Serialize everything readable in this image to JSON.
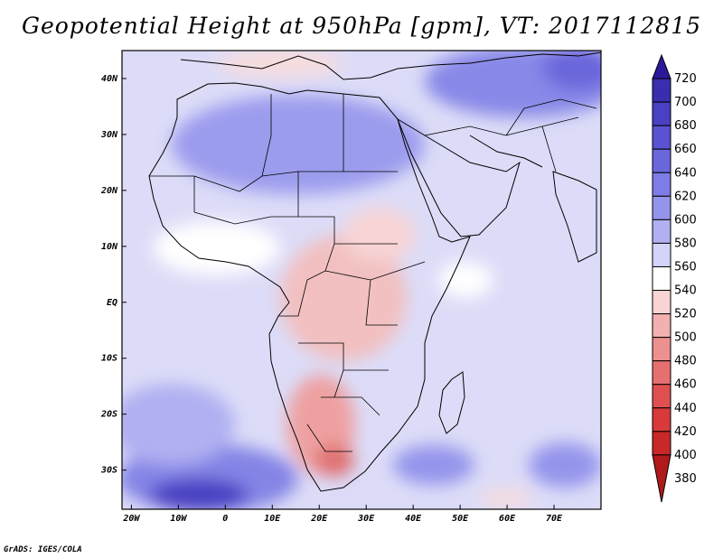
{
  "title": "Geopotential Height at 950hPa [gpm], VT: 2017112815",
  "credit": "GrADS: IGES/COLA",
  "map": {
    "lon_range": [
      -22,
      80
    ],
    "lat_range": [
      -37,
      45
    ],
    "lat_ticks": [
      {
        "value": 40,
        "label": "40N"
      },
      {
        "value": 30,
        "label": "30N"
      },
      {
        "value": 20,
        "label": "20N"
      },
      {
        "value": 10,
        "label": "10N"
      },
      {
        "value": 0,
        "label": "EQ"
      },
      {
        "value": -10,
        "label": "10S"
      },
      {
        "value": -20,
        "label": "20S"
      },
      {
        "value": -30,
        "label": "30S"
      }
    ],
    "lon_ticks": [
      {
        "value": -20,
        "label": "20W"
      },
      {
        "value": -10,
        "label": "10W"
      },
      {
        "value": 0,
        "label": "0"
      },
      {
        "value": 10,
        "label": "10E"
      },
      {
        "value": 20,
        "label": "20E"
      },
      {
        "value": 30,
        "label": "30E"
      },
      {
        "value": 40,
        "label": "40E"
      },
      {
        "value": 50,
        "label": "50E"
      },
      {
        "value": 60,
        "label": "60E"
      },
      {
        "value": 70,
        "label": "70E"
      }
    ],
    "background_color": "#dcdcf8"
  },
  "colorbar": {
    "labels": [
      "720",
      "700",
      "680",
      "660",
      "640",
      "620",
      "600",
      "580",
      "560",
      "540",
      "520",
      "500",
      "480",
      "460",
      "440",
      "420",
      "400",
      "380"
    ],
    "colors": [
      "#2a1a9a",
      "#3a2eae",
      "#4a40c2",
      "#5a52d0",
      "#6a66dc",
      "#7e7ce6",
      "#9494ec",
      "#b0b0f2",
      "#d4d4f8",
      "#ffffff",
      "#f8d4d4",
      "#f2b0b0",
      "#ec9090",
      "#e67070",
      "#e05050",
      "#d83a3a",
      "#c82828",
      "#b01a1a"
    ]
  }
}
